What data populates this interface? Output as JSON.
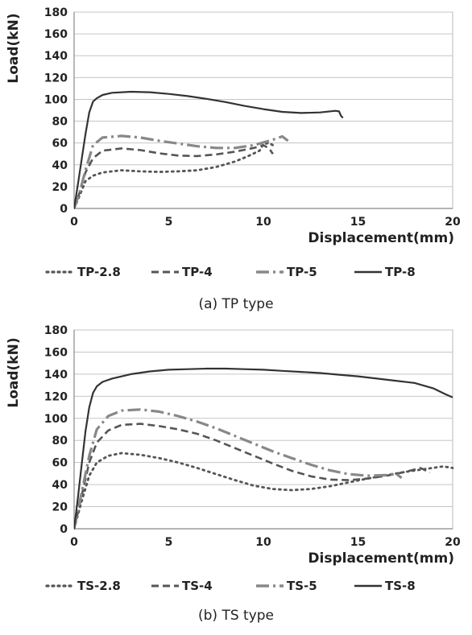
{
  "chart_data": [
    {
      "type": "line",
      "caption": "(a) TP type",
      "xlabel": "Displacement(mm)",
      "ylabel": "Load(kN)",
      "xlim": [
        0,
        20
      ],
      "ylim": [
        0,
        180
      ],
      "xticks": [
        0,
        5,
        10,
        15,
        20
      ],
      "yticks": [
        0,
        20,
        40,
        60,
        80,
        100,
        120,
        140,
        160,
        180
      ],
      "grid": "horizontal",
      "legend_position": "bottom",
      "series": [
        {
          "name": "TP-2.8",
          "style": "dotted",
          "color": "#555555",
          "x": [
            0,
            0.3,
            0.6,
            1.0,
            1.5,
            2.5,
            3.5,
            4.5,
            5.5,
            6.5,
            7.5,
            8.5,
            9.2,
            9.8,
            10.0,
            10.3,
            10.6
          ],
          "y": [
            0,
            12,
            25,
            30,
            33,
            35,
            34,
            33.5,
            34,
            35,
            38,
            43,
            48,
            53,
            59,
            60,
            57
          ]
        },
        {
          "name": "TP-4",
          "style": "dashed",
          "color": "#555555",
          "x": [
            0,
            0.3,
            0.6,
            1.0,
            1.5,
            2.5,
            3.5,
            4.5,
            5.5,
            6.5,
            7.5,
            8.5,
            9.5,
            10.0,
            10.3,
            10.5
          ],
          "y": [
            0,
            15,
            33,
            46,
            53,
            55,
            53.5,
            50.5,
            48.5,
            48,
            49.5,
            52,
            55.5,
            58,
            55,
            50
          ]
        },
        {
          "name": "TP-5",
          "style": "dashdot",
          "color": "#888888",
          "x": [
            0,
            0.3,
            0.6,
            1.0,
            1.5,
            2.5,
            3.5,
            4.5,
            5.5,
            6.5,
            7.5,
            8.5,
            9.5,
            10.5,
            11.0,
            11.3
          ],
          "y": [
            0,
            15,
            35,
            58,
            65,
            66.5,
            65,
            62,
            59.5,
            57,
            55.5,
            55.5,
            58,
            63,
            66,
            62
          ]
        },
        {
          "name": "TP-8",
          "style": "solid",
          "color": "#333333",
          "x": [
            0,
            0.2,
            0.4,
            0.6,
            0.8,
            1.0,
            1.2,
            1.5,
            2.0,
            3.0,
            4.0,
            5.0,
            6.0,
            7.0,
            8.0,
            9.0,
            10.0,
            11.0,
            12.0,
            13.0,
            13.8,
            14.0,
            14.1,
            14.2
          ],
          "y": [
            0,
            22,
            45,
            68,
            88,
            98,
            101,
            104,
            106,
            107,
            106.5,
            105,
            103,
            100.5,
            97.5,
            94,
            91,
            88.5,
            87.5,
            88,
            89.5,
            89,
            85,
            83
          ]
        }
      ]
    },
    {
      "type": "line",
      "caption": "(b) TS type",
      "xlabel": "Displacement(mm)",
      "ylabel": "Load(kN)",
      "xlim": [
        0,
        20
      ],
      "ylim": [
        0,
        180
      ],
      "xticks": [
        0,
        5,
        10,
        15,
        20
      ],
      "yticks": [
        0,
        20,
        40,
        60,
        80,
        100,
        120,
        140,
        160,
        180
      ],
      "grid": "horizontal",
      "legend_position": "bottom",
      "series": [
        {
          "name": "TS-2.8",
          "style": "dotted",
          "color": "#555555",
          "x": [
            0,
            0.4,
            0.8,
            1.2,
            1.8,
            2.5,
            3.5,
            4.5,
            5.5,
            6.5,
            7.5,
            8.5,
            9.5,
            10.5,
            11.5,
            12.5,
            13.5,
            14.5,
            15.5,
            16.5,
            17.5,
            18.5,
            19.5,
            20.0
          ],
          "y": [
            0,
            25,
            48,
            60,
            66,
            68.5,
            67,
            64,
            60,
            55,
            49.5,
            44,
            39,
            36,
            35,
            36,
            38.5,
            42,
            45.5,
            48.5,
            51.5,
            54,
            56.5,
            55
          ]
        },
        {
          "name": "TS-4",
          "style": "dashed",
          "color": "#555555",
          "x": [
            0,
            0.4,
            0.8,
            1.2,
            1.8,
            2.5,
            3.5,
            4.5,
            5.5,
            6.5,
            7.5,
            8.5,
            9.5,
            10.5,
            11.5,
            12.5,
            13.5,
            14.5,
            15.5,
            16.5,
            17.5,
            18.3,
            18.8
          ],
          "y": [
            0,
            30,
            60,
            78,
            89,
            94,
            95,
            93,
            90,
            86,
            80,
            73,
            66,
            59,
            52.5,
            47.5,
            44.5,
            44,
            45.5,
            48,
            51.5,
            55,
            51
          ]
        },
        {
          "name": "TS-5",
          "style": "dashdot",
          "color": "#888888",
          "x": [
            0,
            0.4,
            0.8,
            1.2,
            1.8,
            2.5,
            3.5,
            4.5,
            5.5,
            6.5,
            7.5,
            8.5,
            9.5,
            10.5,
            11.5,
            12.5,
            13.5,
            14.5,
            15.5,
            16.5,
            17.0,
            17.3
          ],
          "y": [
            0,
            33,
            66,
            90,
            102,
            107,
            108,
            106,
            102,
            97,
            91,
            84,
            77,
            70,
            64,
            58,
            53,
            49.5,
            48,
            48.5,
            50,
            46
          ]
        },
        {
          "name": "TS-8",
          "style": "solid",
          "color": "#333333",
          "x": [
            0,
            0.2,
            0.4,
            0.6,
            0.8,
            1.0,
            1.2,
            1.5,
            2.0,
            3.0,
            4.0,
            5.0,
            6.0,
            7.0,
            8.0,
            9.0,
            10.0,
            11.0,
            12.0,
            13.0,
            14.0,
            15.0,
            16.0,
            17.0,
            18.0,
            19.0,
            19.6,
            20.0
          ],
          "y": [
            0,
            28,
            58,
            88,
            110,
            123,
            129,
            133,
            136,
            140,
            142.5,
            144,
            144.5,
            145,
            145,
            144.5,
            144,
            143,
            142,
            141,
            139.5,
            138,
            136,
            134,
            132,
            127,
            122,
            119
          ]
        }
      ]
    }
  ]
}
